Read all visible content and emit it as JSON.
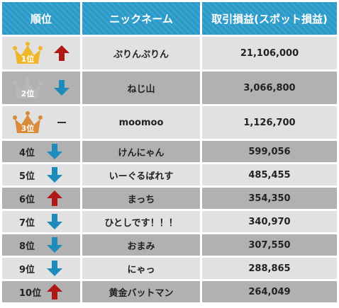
{
  "headers": {
    "rank": "順位",
    "nickname": "ニックネーム",
    "profit": "取引損益(スポット損益)"
  },
  "colors": {
    "header": "#2a9ac8",
    "up": "#b01818",
    "down": "#1e8bbd",
    "gold": "#f0b62a",
    "silver": "#b8b8b8",
    "bronze": "#d98b3a",
    "row_light": "#e1e1e1",
    "row_dark": "#b1b1b1"
  },
  "rows": [
    {
      "rank": "1位",
      "crown": "gold",
      "trend": "up",
      "name": "ぷりんぷりん",
      "value": "21,106,000"
    },
    {
      "rank": "2位",
      "crown": "silver",
      "trend": "down",
      "name": "ねじ山",
      "value": "3,066,800"
    },
    {
      "rank": "3位",
      "crown": "bronze",
      "trend": "flat",
      "name": "moomoo",
      "value": "1,126,700"
    },
    {
      "rank": "4位",
      "trend": "down",
      "name": "けんにゃん",
      "value": "599,056"
    },
    {
      "rank": "5位",
      "trend": "down",
      "name": "いーぐるばれす",
      "value": "485,455"
    },
    {
      "rank": "6位",
      "trend": "up",
      "name": "まっち",
      "value": "354,350"
    },
    {
      "rank": "7位",
      "trend": "down",
      "name": "ひとしです！！！",
      "value": "340,970"
    },
    {
      "rank": "8位",
      "trend": "down",
      "name": "おまみ",
      "value": "307,550"
    },
    {
      "rank": "9位",
      "trend": "down",
      "name": "にゃっ",
      "value": "288,865"
    },
    {
      "rank": "10位",
      "trend": "up",
      "name": "黄金バットマン",
      "value": "264,049"
    }
  ]
}
